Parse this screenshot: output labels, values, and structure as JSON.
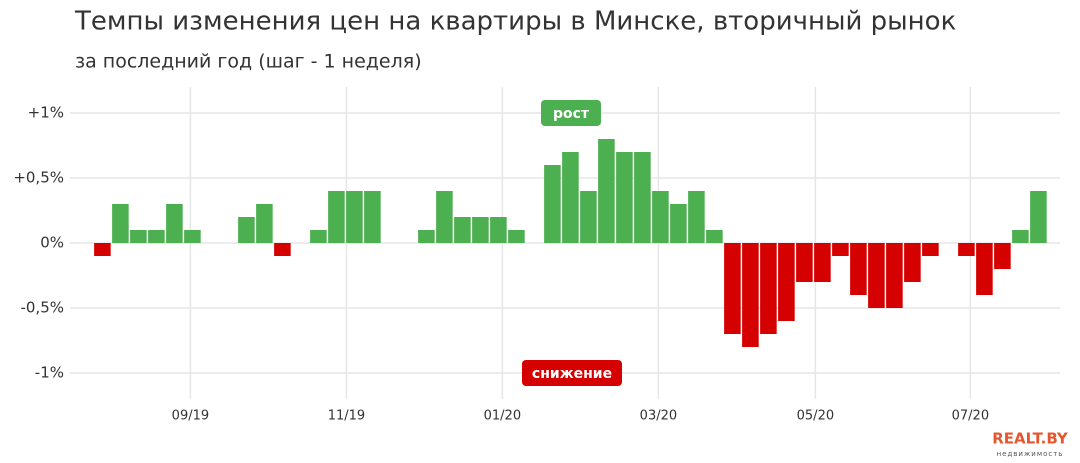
{
  "chart_data": {
    "type": "bar",
    "title": "Темпы изменения цен на квартиры в Минске, вторичный рынок",
    "subtitle": "за последний год (шаг - 1 неделя)",
    "x": [
      0,
      1,
      2,
      3,
      4,
      5,
      6,
      7,
      8,
      9,
      10,
      11,
      12,
      13,
      14,
      15,
      16,
      17,
      18,
      19,
      20,
      21,
      22,
      23,
      24,
      25,
      26,
      27,
      28,
      29,
      30,
      31,
      32,
      33,
      34,
      35,
      36,
      37,
      38,
      39,
      40,
      41,
      42,
      43,
      44,
      45,
      46,
      47,
      48,
      49,
      50,
      51,
      52
    ],
    "values": [
      -0.1,
      0.3,
      0.1,
      0.1,
      0.3,
      0.1,
      0,
      0,
      0.2,
      0.3,
      -0.1,
      0,
      0.1,
      0.4,
      0.4,
      0.4,
      0,
      0,
      0.1,
      0.4,
      0.2,
      0.2,
      0.2,
      0.1,
      0,
      0.6,
      0.7,
      0.4,
      0.8,
      0.7,
      0.7,
      0.4,
      0.3,
      0.4,
      0.1,
      -0.7,
      -0.8,
      -0.7,
      -0.6,
      -0.3,
      -0.3,
      -0.1,
      -0.4,
      -0.5,
      -0.5,
      -0.3,
      -0.1,
      0,
      -0.1,
      -0.4,
      -0.2,
      0.1,
      0.4
    ],
    "positive_color": "#4caf50",
    "negative_color": "#d50000",
    "xlim": [
      -1.8,
      53.2
    ],
    "xticks": [
      {
        "value": 4.89,
        "label": "09/19"
      },
      {
        "value": 13.56,
        "label": "11/19"
      },
      {
        "value": 22.22,
        "label": "01/20"
      },
      {
        "value": 30.89,
        "label": "03/20"
      },
      {
        "value": 39.61,
        "label": "05/20"
      },
      {
        "value": 48.22,
        "label": "07/20"
      }
    ],
    "ylim": [
      -1.2,
      1.2
    ],
    "yticks": [
      {
        "value": -1,
        "label": "-1%"
      },
      {
        "value": -0.5,
        "label": "-0,5%"
      },
      {
        "value": 0,
        "label": "0%"
      },
      {
        "value": 0.5,
        "label": "+0,5%"
      },
      {
        "value": 1,
        "label": "+1%"
      }
    ],
    "grid": true,
    "annotations": [
      {
        "text": "рост",
        "color": "#4caf50"
      },
      {
        "text": "снижение",
        "color": "#d50000"
      }
    ],
    "logo": {
      "brand": "REALT.BY",
      "tagline": "недвижимость"
    }
  }
}
